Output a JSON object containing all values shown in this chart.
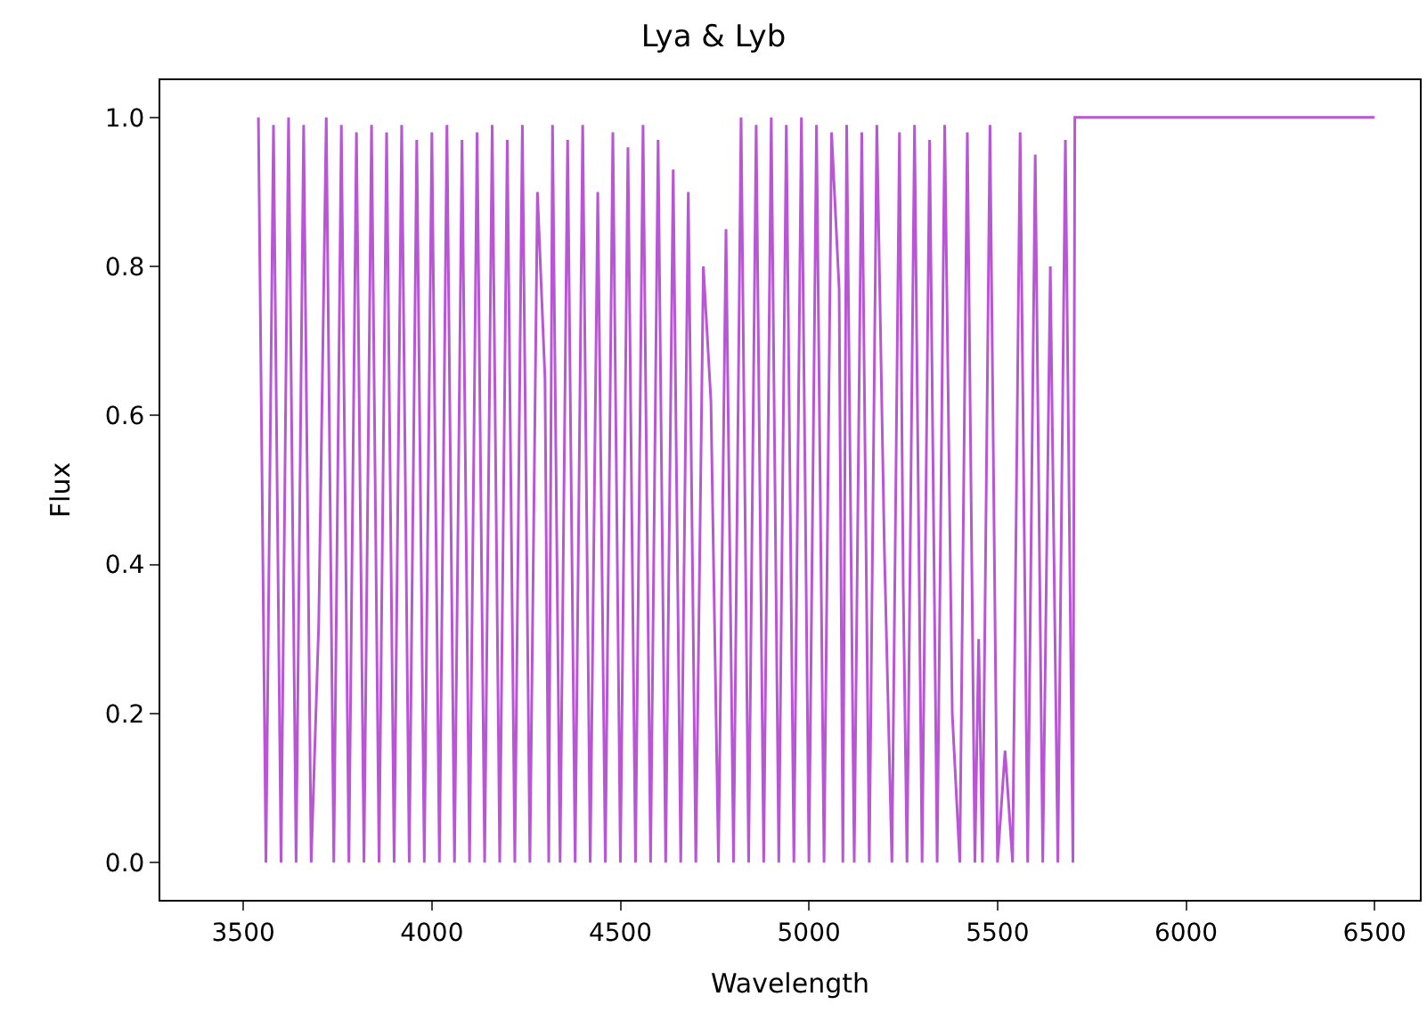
{
  "chart_data": {
    "type": "line",
    "title": "Lya & Lyb",
    "xlabel": "Wavelength",
    "ylabel": "Flux",
    "xlim": [
      3280,
      6620
    ],
    "ylim": [
      -0.05,
      1.05
    ],
    "xticks": [
      3500,
      4000,
      4500,
      5000,
      5500,
      6000,
      6500
    ],
    "yticks": [
      {
        "value": 0,
        "label": "0.0"
      },
      {
        "value": 0.2,
        "label": "0.2"
      },
      {
        "value": 0.4,
        "label": "0.4"
      },
      {
        "value": 0.6,
        "label": "0.6"
      },
      {
        "value": 0.8,
        "label": "0.8"
      },
      {
        "value": 1.0,
        "label": "1.0"
      }
    ],
    "marker": "none",
    "line_style": "solid",
    "series": [
      {
        "color": "#b856d6",
        "x": [
          3540,
          3560,
          3580,
          3600,
          3620,
          3640,
          3660,
          3680,
          3700,
          3720,
          3740,
          3760,
          3780,
          3800,
          3820,
          3840,
          3860,
          3880,
          3900,
          3920,
          3940,
          3960,
          3980,
          4000,
          4020,
          4040,
          4060,
          4080,
          4100,
          4120,
          4140,
          4160,
          4180,
          4200,
          4220,
          4240,
          4260,
          4280,
          4300,
          4310,
          4320,
          4340,
          4360,
          4380,
          4400,
          4420,
          4440,
          4460,
          4480,
          4500,
          4520,
          4540,
          4560,
          4580,
          4600,
          4620,
          4640,
          4660,
          4680,
          4700,
          4720,
          4740,
          4760,
          4780,
          4800,
          4820,
          4840,
          4860,
          4880,
          4900,
          4920,
          4940,
          4960,
          4980,
          5000,
          5020,
          5040,
          5060,
          5080,
          5090,
          5100,
          5120,
          5140,
          5160,
          5180,
          5200,
          5220,
          5240,
          5250,
          5260,
          5280,
          5300,
          5320,
          5340,
          5360,
          5380,
          5400,
          5420,
          5440,
          5450,
          5460,
          5480,
          5500,
          5520,
          5540,
          5560,
          5580,
          5600,
          5620,
          5640,
          5660,
          5680,
          5700,
          5705,
          6500
        ],
        "values": [
          1.0,
          0.0,
          0.99,
          0.0,
          1.0,
          0.0,
          0.99,
          0.0,
          0.32,
          1.0,
          0.0,
          0.99,
          0.0,
          0.98,
          0.0,
          0.99,
          0.0,
          0.98,
          0.0,
          0.99,
          0.0,
          0.97,
          0.0,
          0.98,
          0.0,
          0.99,
          0.0,
          0.97,
          0.0,
          0.98,
          0.0,
          0.99,
          0.0,
          0.97,
          0.0,
          0.99,
          0.0,
          0.9,
          0.65,
          0.0,
          0.99,
          0.0,
          0.97,
          0.0,
          0.99,
          0.0,
          0.9,
          0.0,
          0.98,
          0.0,
          0.96,
          0.0,
          0.99,
          0.0,
          0.97,
          0.0,
          0.93,
          0.0,
          0.9,
          0.0,
          0.8,
          0.62,
          0.0,
          0.85,
          0.0,
          1.0,
          0.0,
          0.99,
          0.0,
          1.0,
          0.0,
          0.99,
          0.0,
          1.0,
          0.0,
          0.99,
          0.0,
          0.98,
          0.77,
          0.0,
          0.99,
          0.0,
          0.98,
          0.0,
          0.99,
          0.42,
          0.0,
          0.98,
          0.37,
          0.0,
          0.99,
          0.0,
          0.97,
          0.0,
          0.99,
          0.2,
          0.0,
          0.98,
          0.0,
          0.3,
          0.0,
          0.99,
          0.0,
          0.15,
          0.0,
          0.98,
          0.0,
          0.95,
          0.0,
          0.8,
          0.0,
          0.97,
          0.0,
          1.0,
          1.0
        ]
      }
    ]
  }
}
